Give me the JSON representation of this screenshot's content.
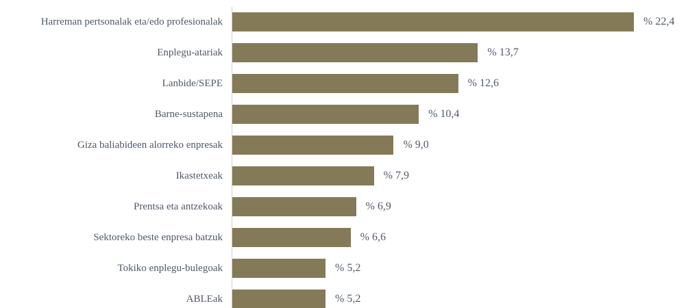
{
  "chart_data": {
    "type": "bar",
    "orientation": "horizontal",
    "categories": [
      "Harreman pertsonalak eta/edo profesionalak",
      "Enplegu-atariak",
      "Lanbide/SEPE",
      "Barne-sustapena",
      "Giza baliabideen alorreko enpresak",
      "Ikastetxeak",
      "Prentsa eta antzekoak",
      "Sektoreko beste enpresa batzuk",
      "Tokiko enplegu-bulegoak",
      "ABLEak"
    ],
    "values": [
      22.4,
      13.7,
      12.6,
      10.4,
      9.0,
      7.9,
      6.9,
      6.6,
      5.2,
      5.2
    ],
    "value_labels": [
      "% 22,4",
      "% 13,7",
      "% 12,6",
      "% 10,4",
      "% 9,0",
      "% 7,9",
      "% 6,9",
      "% 6,6",
      "% 5,2",
      "% 5,2"
    ],
    "color": "#857a58"
  }
}
